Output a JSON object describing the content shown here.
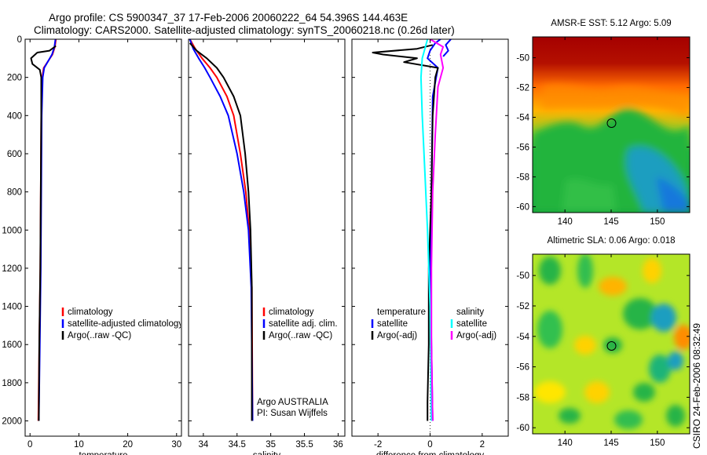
{
  "title_line1": "Argo profile: CS 5900347_37 17-Feb-2006 20060222_64 54.396S 144.463E",
  "title_line2": "Climatology: CARS2000. Satellite-adjusted climatology: synTS_20060218.nc (0.26d later)",
  "side_label": "CSIRO 24-Feb-2006 08:32:49",
  "credit_lines": [
    "Argo AUSTRALIA",
    "PI: Susan Wijffels"
  ],
  "colors": {
    "climatology": "#ff0000",
    "satellite": "#0000ff",
    "argo": "#000000",
    "sat_t": "#00ffff",
    "argo_s": "#ff00ff"
  },
  "chart_data": [
    {
      "type": "line",
      "xlabel": "temperature",
      "ylim": [
        2080,
        0
      ],
      "xlim": [
        -1,
        31
      ],
      "xticks": [
        0,
        10,
        20,
        30
      ],
      "yticks": [
        0,
        200,
        400,
        600,
        800,
        1000,
        1200,
        1400,
        1600,
        1800,
        2000
      ],
      "legend": [
        "climatology",
        "satellite-adjusted climatology",
        "Argo(..raw -QC)"
      ],
      "series": [
        {
          "name": "climatology",
          "color": "#ff0000",
          "points": [
            [
              5.3,
              0
            ],
            [
              5.1,
              40
            ],
            [
              4.6,
              80
            ],
            [
              2.8,
              150
            ],
            [
              2.5,
              200
            ],
            [
              2.3,
              400
            ],
            [
              2.2,
              800
            ],
            [
              2.1,
              1200
            ],
            [
              1.9,
              1600
            ],
            [
              1.7,
              2000
            ]
          ]
        },
        {
          "name": "satellite-adjusted climatology",
          "color": "#0000ff",
          "points": [
            [
              5.2,
              0
            ],
            [
              5.0,
              40
            ],
            [
              4.5,
              80
            ],
            [
              2.9,
              150
            ],
            [
              2.6,
              200
            ],
            [
              2.4,
              400
            ],
            [
              2.3,
              800
            ],
            [
              2.2,
              1200
            ],
            [
              2.0,
              1600
            ],
            [
              1.8,
              2000
            ]
          ]
        },
        {
          "name": "Argo(..raw -QC)",
          "color": "#000000",
          "points": [
            [
              5.3,
              35
            ],
            [
              4.0,
              60
            ],
            [
              1.5,
              70
            ],
            [
              0.2,
              100
            ],
            [
              0.5,
              130
            ],
            [
              2.0,
              160
            ],
            [
              2.3,
              200
            ],
            [
              2.3,
              400
            ],
            [
              2.2,
              800
            ],
            [
              2.1,
              1200
            ],
            [
              1.9,
              1600
            ],
            [
              1.8,
              2000
            ]
          ]
        }
      ]
    },
    {
      "type": "line",
      "xlabel": "salinity",
      "ylim": [
        2080,
        0
      ],
      "xlim": [
        33.78,
        36.1
      ],
      "xticks": [
        34,
        34.5,
        35,
        35.5,
        36
      ],
      "legend": [
        "climatology",
        "satellite adj. clim.",
        "Argo(..raw -QC)"
      ],
      "series": [
        {
          "name": "climatology",
          "color": "#ff0000",
          "points": [
            [
              33.8,
              0
            ],
            [
              33.88,
              50
            ],
            [
              33.98,
              100
            ],
            [
              34.1,
              150
            ],
            [
              34.2,
              200
            ],
            [
              34.35,
              300
            ],
            [
              34.45,
              400
            ],
            [
              34.55,
              600
            ],
            [
              34.63,
              800
            ],
            [
              34.68,
              1000
            ],
            [
              34.72,
              1300
            ],
            [
              34.73,
              2000
            ]
          ]
        },
        {
          "name": "satellite adj. clim.",
          "color": "#0000ff",
          "points": [
            [
              33.8,
              0
            ],
            [
              33.85,
              50
            ],
            [
              33.93,
              100
            ],
            [
              34.02,
              150
            ],
            [
              34.1,
              200
            ],
            [
              34.25,
              300
            ],
            [
              34.37,
              400
            ],
            [
              34.5,
              600
            ],
            [
              34.6,
              800
            ],
            [
              34.67,
              1000
            ],
            [
              34.71,
              1300
            ],
            [
              34.73,
              2000
            ]
          ]
        },
        {
          "name": "Argo(..raw -QC)",
          "color": "#000000",
          "points": [
            [
              33.8,
              20
            ],
            [
              33.9,
              60
            ],
            [
              34.05,
              100
            ],
            [
              34.2,
              150
            ],
            [
              34.3,
              200
            ],
            [
              34.45,
              300
            ],
            [
              34.55,
              400
            ],
            [
              34.62,
              600
            ],
            [
              34.67,
              800
            ],
            [
              34.7,
              1000
            ],
            [
              34.72,
              1300
            ],
            [
              34.72,
              2000
            ]
          ]
        }
      ]
    },
    {
      "type": "line",
      "xlabel": "difference from climatology",
      "ylim": [
        2080,
        0
      ],
      "xlim": [
        -3,
        3
      ],
      "xticks": [
        -2,
        0,
        2
      ],
      "legend_left": [
        "temperature",
        "satellite",
        "Argo(-adj)"
      ],
      "legend_right": [
        "salinity",
        "satellite",
        "Argo(-adj)"
      ],
      "series": [
        {
          "name": "temperature satellite",
          "color": "#0000ff",
          "points": [
            [
              0.4,
              0
            ],
            [
              0.2,
              20
            ],
            [
              0.0,
              60
            ],
            [
              -0.1,
              100
            ],
            [
              0.3,
              150
            ],
            [
              0.1,
              300
            ],
            [
              0.05,
              800
            ],
            [
              0.0,
              1200
            ],
            [
              0.05,
              1600
            ],
            [
              0.1,
              2000
            ]
          ]
        },
        {
          "name": "temperature Argo(-adj)",
          "color": "#000000",
          "points": [
            [
              0.1,
              30
            ],
            [
              -0.5,
              50
            ],
            [
              -2.2,
              70
            ],
            [
              -1.8,
              80
            ],
            [
              -0.5,
              100
            ],
            [
              -1.0,
              120
            ],
            [
              0.3,
              150
            ],
            [
              0.2,
              200
            ],
            [
              0.1,
              400
            ],
            [
              0.05,
              800
            ],
            [
              -0.05,
              1200
            ],
            [
              -0.05,
              1600
            ],
            [
              -0.1,
              1900
            ],
            [
              -0.1,
              2000
            ]
          ]
        },
        {
          "name": "salinity satellite",
          "color": "#00ffff",
          "points": [
            [
              -0.1,
              0
            ],
            [
              -0.3,
              100
            ],
            [
              -0.35,
              200
            ],
            [
              -0.3,
              400
            ],
            [
              -0.2,
              700
            ],
            [
              -0.1,
              1000
            ],
            [
              0.0,
              1400
            ],
            [
              0.05,
              2000
            ]
          ]
        },
        {
          "name": "salinity Argo(-adj)",
          "color": "#ff00ff",
          "points": [
            [
              0.0,
              0
            ],
            [
              0.5,
              40
            ],
            [
              0.4,
              80
            ],
            [
              0.5,
              150
            ],
            [
              0.3,
              250
            ],
            [
              0.2,
              500
            ],
            [
              0.1,
              800
            ],
            [
              0.05,
              1200
            ],
            [
              0.05,
              1600
            ],
            [
              0.1,
              2000
            ]
          ]
        },
        {
          "name": "Argo salinity outliers",
          "color": "#0000ff",
          "points": [
            [
              0.8,
              0
            ],
            [
              0.6,
              30
            ],
            [
              0.7,
              60
            ],
            [
              0.5,
              90
            ]
          ]
        }
      ]
    },
    {
      "type": "heatmap",
      "title": "AMSR-E SST: 5.12 Argo: 5.09",
      "xlim": [
        136.5,
        153.5
      ],
      "ylim": [
        -60.4,
        -48.6
      ],
      "xticks": [
        140,
        145,
        150
      ],
      "yticks": [
        -50,
        -52,
        -54,
        -56,
        -58,
        -60
      ],
      "marker": [
        144.46,
        -54.4
      ]
    },
    {
      "type": "heatmap",
      "title": "Altimetric SLA: 0.06 Argo: 0.018",
      "xlim": [
        136.5,
        153.5
      ],
      "ylim": [
        -60.4,
        -48.6
      ],
      "xticks": [
        140,
        145,
        150
      ],
      "yticks": [
        -50,
        -52,
        -54,
        -56,
        -58,
        -60
      ],
      "marker": [
        144.46,
        -54.4
      ]
    }
  ]
}
